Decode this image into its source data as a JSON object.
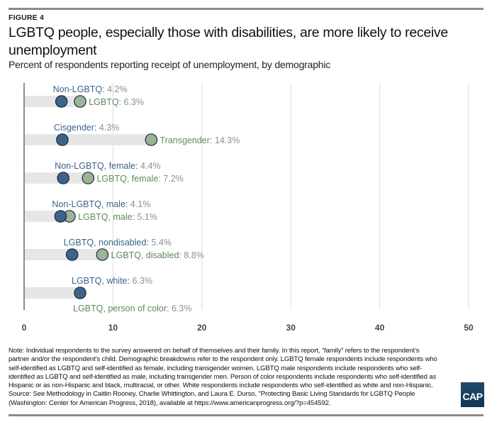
{
  "header": {
    "figure_label": "FIGURE 4",
    "title": "LGBTQ people, especially those with disabilities, are more likely to receive unemployment",
    "subtitle": "Percent of respondents reporting receipt of unemployment, by demographic"
  },
  "colors": {
    "comparison_dot": "#3d628c",
    "lgbtq_dot": "#9ab499",
    "comparison_label": "#3d628c",
    "lgbtq_label": "#5f8a5d",
    "value_text": "#8f8f8f",
    "bar": "#e6e6e6",
    "grid": "#dddddd",
    "axis": "#8c8c8c"
  },
  "chart_data": {
    "type": "dot-plot",
    "title": "LGBTQ people, especially those with disabilities, are more likely to receive unemployment",
    "subtitle": "Percent of respondents reporting receipt of unemployment, by demographic",
    "xlabel": "",
    "ylabel": "",
    "xlim": [
      0,
      50
    ],
    "xticks": [
      0,
      10,
      20,
      30,
      40,
      50
    ],
    "grid": true,
    "rows": [
      {
        "a_label": "Non-LGBTQ:",
        "a_value": 4.2,
        "a_text": "4.2%",
        "b_label": "LGBTQ:",
        "b_value": 6.3,
        "b_text": "6.3%",
        "b_label_position": "right"
      },
      {
        "a_label": "Cisgender:",
        "a_value": 4.3,
        "a_text": "4.3%",
        "b_label": "Transgender:",
        "b_value": 14.3,
        "b_text": "14.3%",
        "b_label_position": "right"
      },
      {
        "a_label": "Non-LGBTQ, female:",
        "a_value": 4.4,
        "a_text": "4.4%",
        "b_label": "LGBTQ, female:",
        "b_value": 7.2,
        "b_text": "7.2%",
        "b_label_position": "right"
      },
      {
        "a_label": "Non-LGBTQ, male:",
        "a_value": 4.1,
        "a_text": "4.1%",
        "b_label": "LGBTQ, male:",
        "b_value": 5.1,
        "b_text": "5.1%",
        "b_label_position": "right"
      },
      {
        "a_label": "LGBTQ, nondisabled:",
        "a_value": 5.4,
        "a_text": "5.4%",
        "b_label": "LGBTQ, disabled:",
        "b_value": 8.8,
        "b_text": "8.8%",
        "b_label_position": "right"
      },
      {
        "a_label": "LGBTQ, white:",
        "a_value": 6.3,
        "a_text": "6.3%",
        "b_label": "LGBTQ, person of color:",
        "b_value": 6.3,
        "b_text": "6.3%",
        "b_label_position": "below"
      }
    ]
  },
  "footer": {
    "note": "Note: Individual respondents to the survey answered on behalf of themselves and their family. In this report, “family” refers to the respondent’s partner and/or the respondent’s child. Demographic breakdowns refer to the respondent only. LGBTQ female respondents include respondents who self-identified as LGBTQ and self-identified as female, including transgender women. LGBTQ male respondents include respondents who self-identified as LGBTQ and self-identified as male, including transgender men. Person of color respondents include respondents who self-identified as Hispanic or as non-Hispanic and black, multiracial, or other. White respondents include respondents who self-identified as white and non-Hispanic.",
    "source": "Source: See Methodology in Caitlin Rooney, Charlie Whittington, and Laura E. Durso, \"Protecting Basic Living Standards for LGBTQ People (Washington: Center for American Progress, 2018), available at https://www.americanprogress.org/?p=454592.",
    "logo_text": "CAP"
  }
}
